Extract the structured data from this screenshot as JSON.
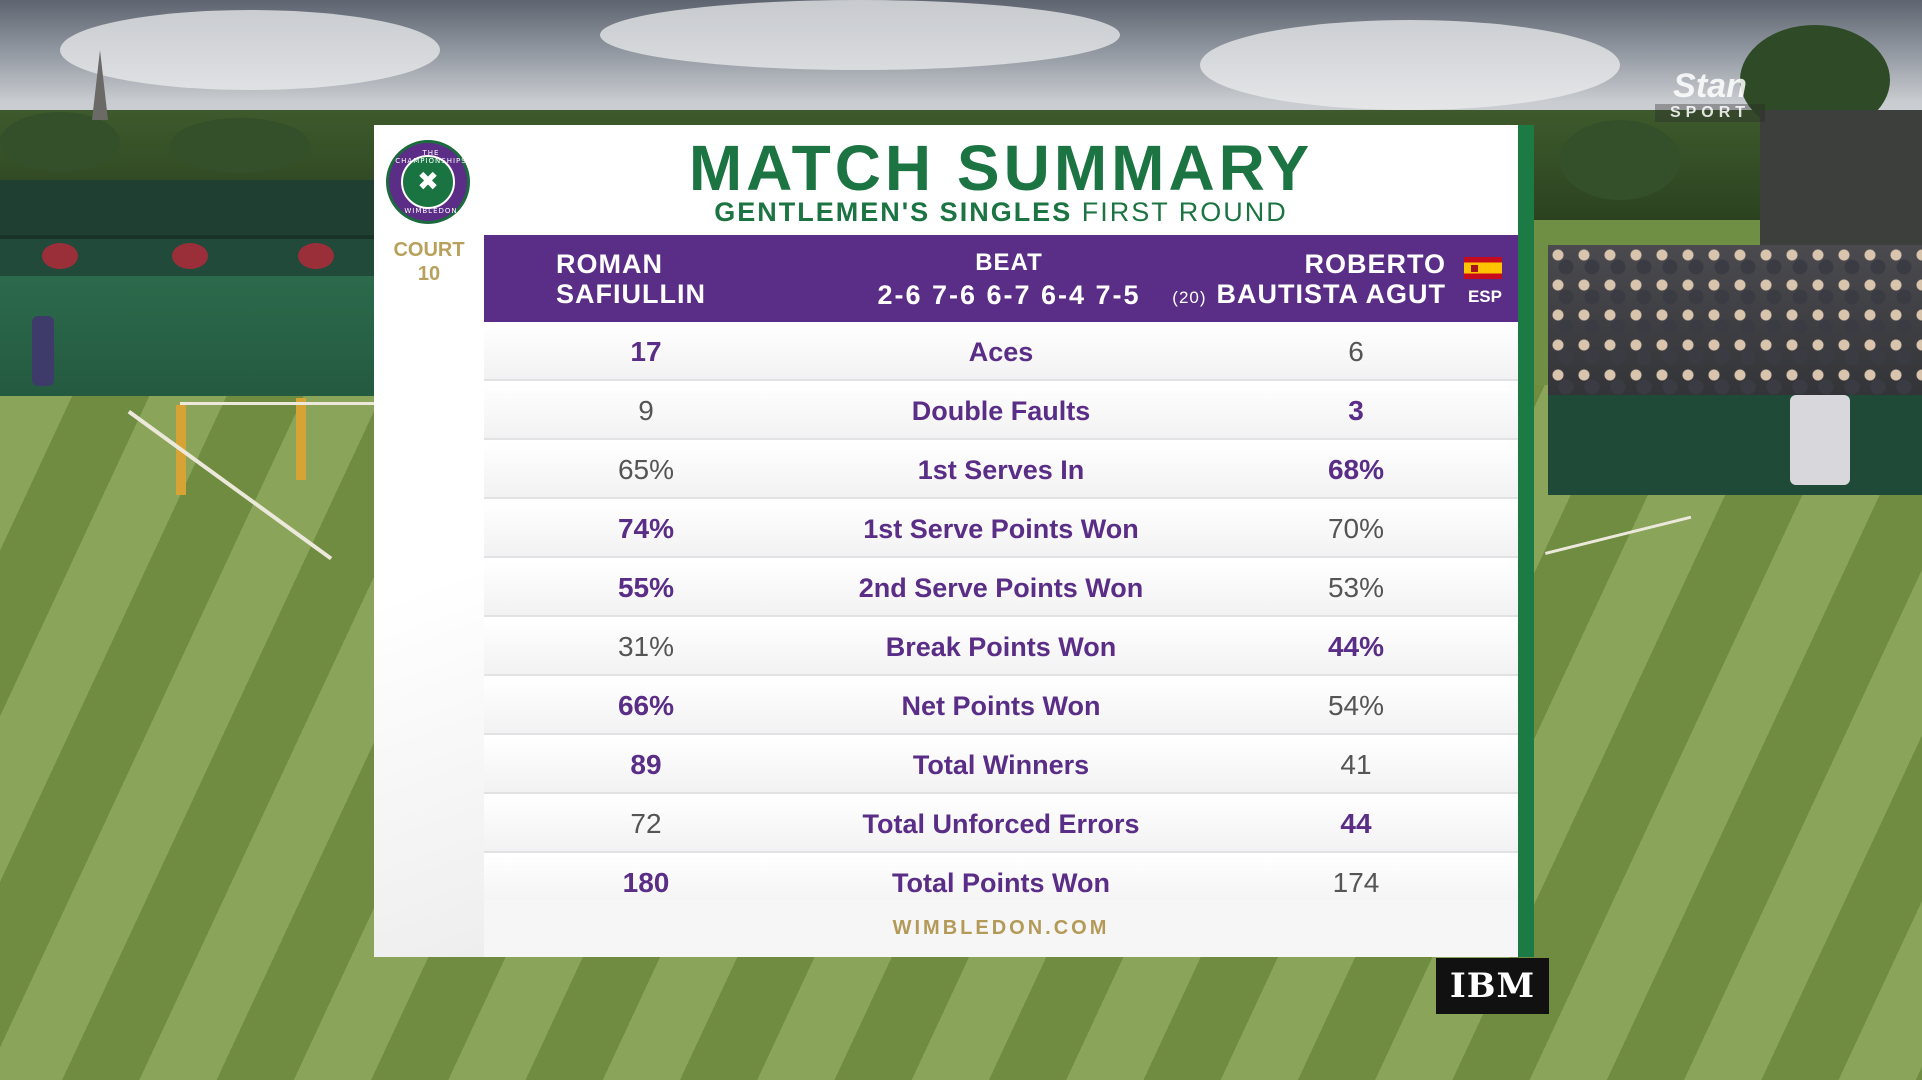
{
  "broadcast": {
    "network_logo": "Stan",
    "network_sub": "SPORT",
    "sponsor": "IBM"
  },
  "badge": {
    "top_text": "THE CHAMPIONSHIPS",
    "bottom_text": "WIMBLEDON"
  },
  "court": {
    "label": "COURT",
    "number": "10"
  },
  "title": "MATCH SUMMARY",
  "subtitle": {
    "event": "GENTLEMEN'S SINGLES",
    "round": "FIRST ROUND"
  },
  "match": {
    "player1": {
      "first": "ROMAN",
      "last": "SAFIULLIN"
    },
    "result_word": "BEAT",
    "score": "2-6 7-6 6-7 6-4 7-5",
    "player2": {
      "first": "ROBERTO",
      "last": "BAUTISTA AGUT",
      "seed": "(20)",
      "nation": "ESP"
    }
  },
  "stats": [
    {
      "label": "Aces",
      "p1": "17",
      "p2": "6",
      "leader": "p1"
    },
    {
      "label": "Double Faults",
      "p1": "9",
      "p2": "3",
      "leader": "p2"
    },
    {
      "label": "1st Serves In",
      "p1": "65%",
      "p2": "68%",
      "leader": "p2"
    },
    {
      "label": "1st Serve Points Won",
      "p1": "74%",
      "p2": "70%",
      "leader": "p1"
    },
    {
      "label": "2nd Serve Points Won",
      "p1": "55%",
      "p2": "53%",
      "leader": "p1"
    },
    {
      "label": "Break Points Won",
      "p1": "31%",
      "p2": "44%",
      "leader": "p2"
    },
    {
      "label": "Net Points Won",
      "p1": "66%",
      "p2": "54%",
      "leader": "p1"
    },
    {
      "label": "Total Winners",
      "p1": "89",
      "p2": "41",
      "leader": "p1"
    },
    {
      "label": "Total Unforced Errors",
      "p1": "72",
      "p2": "44",
      "leader": "p2"
    },
    {
      "label": "Total Points Won",
      "p1": "180",
      "p2": "174",
      "leader": "p1"
    }
  ],
  "footer": "WIMBLEDON.COM",
  "colors": {
    "purple": "#5a2d86",
    "green": "#1b7442",
    "gold": "#b39a58"
  }
}
